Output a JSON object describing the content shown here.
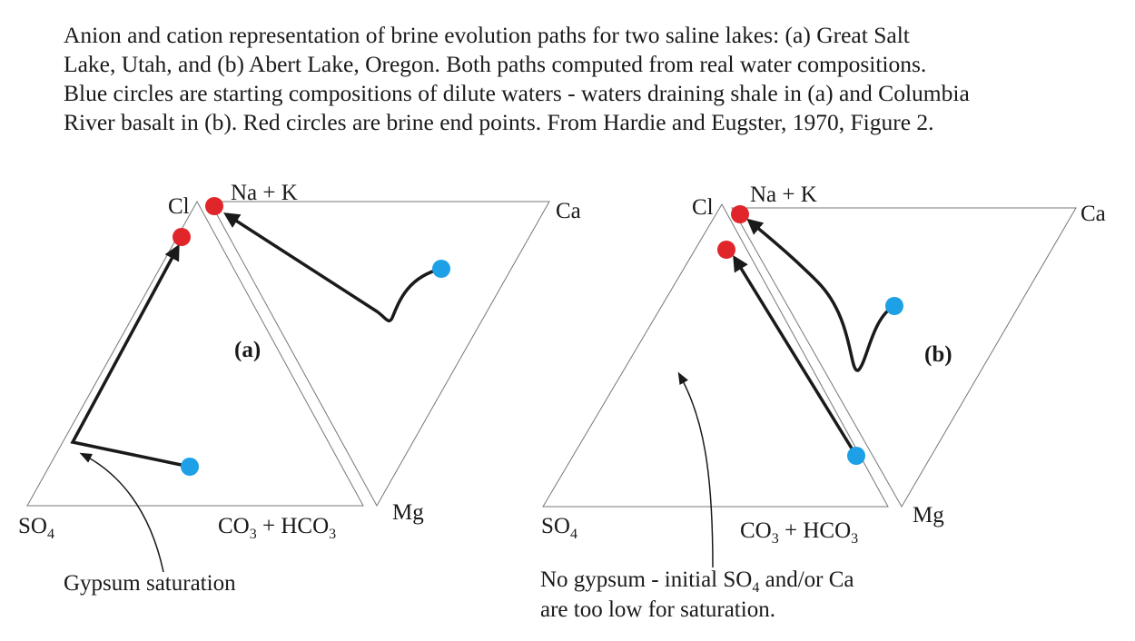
{
  "caption": [
    "Anion and cation representation of brine evolution paths for two saline lakes: (a) Great Salt",
    "Lake, Utah,  and (b) Abert Lake, Oregon. Both paths computed from real water compositions.",
    "Blue circles are starting compositions of dilute waters - waters draining shale in (a) and Columbia",
    "River basalt in (b). Red circles are brine end points. From Hardie and Eugster, 1970, Figure 2."
  ],
  "panels": [
    {
      "label": "(a)",
      "cl": [
        "Cl"
      ],
      "nak": [
        "Na + K"
      ],
      "ca": [
        "Ca"
      ],
      "so4": [
        "SO",
        "4"
      ],
      "co3": [
        "CO",
        "3",
        " + HCO",
        "3"
      ],
      "mg": [
        "Mg"
      ],
      "note": [
        [
          "Gypsum saturation"
        ]
      ]
    },
    {
      "label": "(b)",
      "cl": [
        "Cl"
      ],
      "nak": [
        "Na + K"
      ],
      "ca": [
        "Ca"
      ],
      "so4": [
        "SO",
        "4"
      ],
      "co3": [
        "CO",
        "3",
        " + HCO",
        "3"
      ],
      "mg": [
        "Mg"
      ],
      "note": [
        [
          "No gypsum - initial SO",
          "4",
          " and/or Ca"
        ],
        [
          "are too low for saturation."
        ]
      ]
    }
  ]
}
